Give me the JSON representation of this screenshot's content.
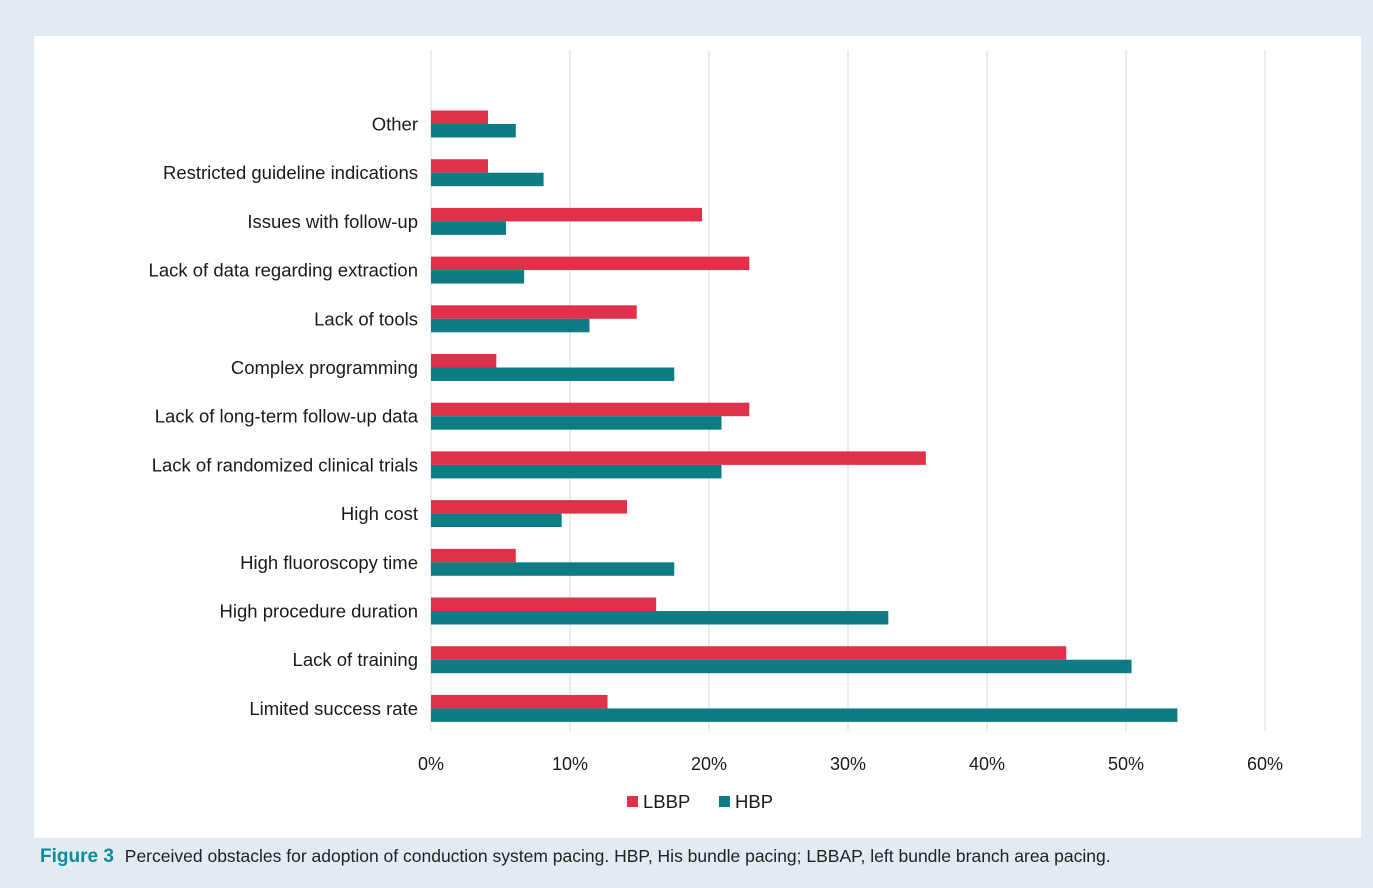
{
  "caption": {
    "label": "Figure 3",
    "text": "Perceived obstacles for adoption of conduction system pacing. HBP, His bundle pacing; LBBAP, left bundle branch area pacing."
  },
  "chart_data": {
    "type": "bar",
    "orientation": "horizontal",
    "categories": [
      "Other",
      "Restricted guideline indications",
      "Issues with follow-up",
      "Lack of data regarding extraction",
      "Lack of tools",
      "Complex programming",
      "Lack of long-term follow-up data",
      "Lack of randomized clinical trials",
      "High cost",
      "High fluoroscopy time",
      "High procedure duration",
      "Lack of training",
      "Limited success rate"
    ],
    "series": [
      {
        "name": "LBBP",
        "color": "#e0314b",
        "values": [
          4.1,
          4.1,
          19.5,
          22.9,
          14.8,
          4.7,
          22.9,
          35.6,
          14.1,
          6.1,
          16.2,
          45.7,
          12.7
        ]
      },
      {
        "name": "HBP",
        "color": "#0e7c85",
        "values": [
          6.1,
          8.1,
          5.4,
          6.7,
          11.4,
          17.5,
          20.9,
          20.9,
          9.4,
          17.5,
          32.9,
          50.4,
          53.7
        ]
      }
    ],
    "xlim": [
      0,
      60
    ],
    "xticks": [
      "0%",
      "10%",
      "20%",
      "30%",
      "40%",
      "50%",
      "60%"
    ],
    "xtick_values": [
      0,
      10,
      20,
      30,
      40,
      50,
      60
    ],
    "grid": "vertical",
    "legend": "bottom-center"
  }
}
